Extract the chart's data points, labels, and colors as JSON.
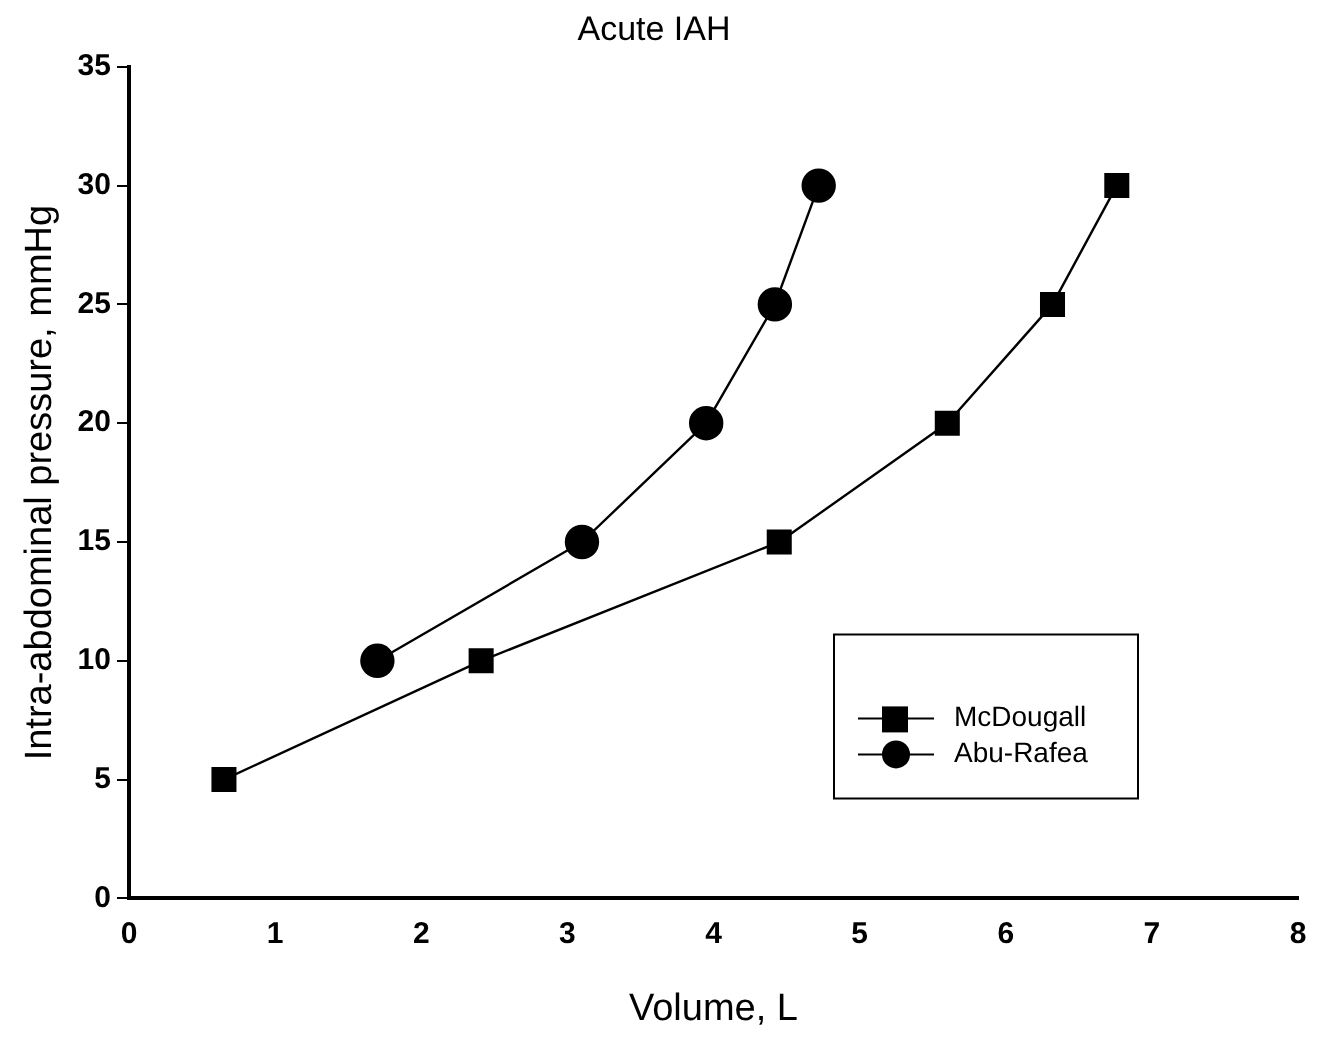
{
  "chart_data": {
    "type": "line",
    "title": "Acute IAH",
    "xlabel": "Volume, L",
    "ylabel": "Intra-abdominal pressure, mmHg",
    "xlim": [
      0,
      8
    ],
    "xticks": [
      0,
      1,
      2,
      3,
      4,
      5,
      6,
      7,
      8
    ],
    "ylim": [
      0,
      35
    ],
    "yticks": [
      0,
      5,
      10,
      15,
      20,
      25,
      30,
      35
    ],
    "grid": false,
    "legend": "bottom right",
    "series": [
      {
        "name": "McDougall",
        "color": "#000000",
        "marker": "square",
        "x": [
          0.65,
          2.41,
          4.45,
          5.6,
          6.32,
          6.76
        ],
        "values": [
          5,
          10,
          15,
          20,
          25,
          30
        ]
      },
      {
        "name": "Abu-Rafea",
        "color": "#000000",
        "marker": "circle",
        "x": [
          1.7,
          3.1,
          3.95,
          4.42,
          4.72
        ],
        "values": [
          10,
          15,
          20,
          25,
          30
        ]
      }
    ]
  }
}
